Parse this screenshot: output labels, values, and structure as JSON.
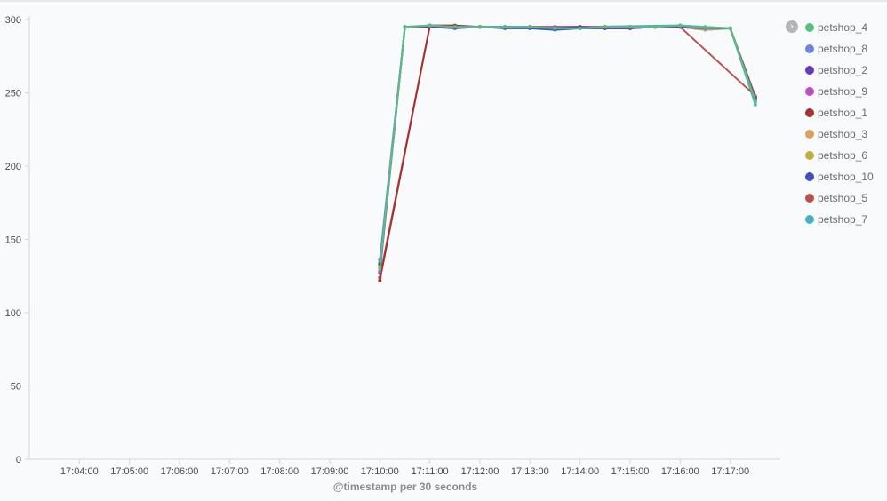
{
  "chart_data": {
    "type": "line",
    "xlabel": "@timestamp per 30 seconds",
    "ylabel": "",
    "ylim": [
      0,
      300
    ],
    "y_ticks": [
      0,
      50,
      100,
      150,
      200,
      250,
      300
    ],
    "x_ticks": [
      "17:04:00",
      "17:05:00",
      "17:06:00",
      "17:07:00",
      "17:08:00",
      "17:09:00",
      "17:10:00",
      "17:11:00",
      "17:12:00",
      "17:13:00",
      "17:14:00",
      "17:15:00",
      "17:16:00",
      "17:17:00"
    ],
    "x_range": [
      "17:03:00",
      "17:18:00"
    ],
    "grid": false,
    "legend_position": "right",
    "legend_toggle_icon": "chevron-right-icon",
    "series": [
      {
        "name": "petshop_4",
        "color": "#57c17b",
        "x": [
          "17:10:00",
          "17:10:30",
          "17:11:00",
          "17:11:30",
          "17:12:00",
          "17:12:30",
          "17:13:00",
          "17:13:30",
          "17:14:00",
          "17:14:30",
          "17:15:00",
          "17:15:30",
          "17:16:00",
          "17:16:30",
          "17:17:00",
          "17:17:30"
        ],
        "values": [
          130,
          295,
          296,
          295,
          295,
          295,
          295,
          294,
          294,
          295,
          295,
          295,
          296,
          295,
          294,
          244
        ]
      },
      {
        "name": "petshop_8",
        "color": "#6f87d8",
        "x": [
          "17:10:00",
          "17:10:30",
          "17:11:00",
          "17:11:30",
          "17:12:00",
          "17:12:30",
          "17:13:00",
          "17:13:30",
          "17:14:00",
          "17:14:30",
          "17:15:00",
          "17:15:30",
          "17:16:00",
          "17:16:30",
          "17:17:00",
          "17:17:30"
        ],
        "values": [
          136,
          295,
          296,
          295,
          295,
          295,
          295,
          294,
          294,
          295,
          295,
          295,
          296,
          294,
          294,
          245
        ]
      },
      {
        "name": "petshop_2",
        "color": "#663db8",
        "x": [
          "17:10:00",
          "17:10:30",
          "17:11:00",
          "17:11:30",
          "17:12:00",
          "17:12:30",
          "17:13:00",
          "17:13:30",
          "17:14:00",
          "17:14:30",
          "17:15:00",
          "17:15:30",
          "17:16:00",
          "17:16:30",
          "17:17:00",
          "17:17:30"
        ],
        "values": [
          133,
          295,
          295,
          295,
          295,
          295,
          295,
          294,
          295,
          294,
          294,
          295,
          295,
          294,
          294,
          246
        ]
      },
      {
        "name": "petshop_9",
        "color": "#bc52bc",
        "x": [
          "17:10:00",
          "17:10:30",
          "17:11:00",
          "17:11:30",
          "17:12:00",
          "17:12:30",
          "17:13:00",
          "17:13:30",
          "17:14:00",
          "17:14:30",
          "17:15:00",
          "17:15:30",
          "17:16:00",
          "17:16:30",
          "17:17:00",
          "17:17:30"
        ],
        "values": [
          128,
          295,
          296,
          295,
          295,
          295,
          295,
          295,
          295,
          295,
          295,
          295,
          295,
          294,
          294,
          246
        ]
      },
      {
        "name": "petshop_1",
        "color": "#9e3533",
        "x": [
          "17:10:00",
          "17:11:00",
          "17:11:30",
          "17:12:00",
          "17:12:30",
          "17:13:00",
          "17:13:30",
          "17:14:00",
          "17:14:30",
          "17:15:00",
          "17:15:30",
          "17:16:00",
          "17:16:30",
          "17:17:00",
          "17:17:30"
        ],
        "values": [
          122,
          296,
          296,
          295,
          295,
          295,
          295,
          295,
          295,
          295,
          295,
          295,
          294,
          294,
          247
        ]
      },
      {
        "name": "petshop_3",
        "color": "#daa05d",
        "x": [
          "17:10:00",
          "17:10:30",
          "17:11:00",
          "17:11:30",
          "17:12:00",
          "17:12:30",
          "17:13:00",
          "17:13:30",
          "17:14:00",
          "17:14:30",
          "17:15:00",
          "17:15:30",
          "17:16:00",
          "17:16:30",
          "17:17:00",
          "17:17:30"
        ],
        "values": [
          132,
          295,
          295,
          295,
          295,
          295,
          295,
          295,
          295,
          295,
          295,
          295,
          295,
          294,
          294,
          248
        ]
      },
      {
        "name": "petshop_6",
        "color": "#bfaf40",
        "x": [
          "17:10:00",
          "17:10:30",
          "17:11:00",
          "17:11:30",
          "17:12:00",
          "17:12:30",
          "17:13:00",
          "17:13:30",
          "17:14:00",
          "17:14:30",
          "17:15:00",
          "17:15:30",
          "17:16:00",
          "17:16:30",
          "17:17:00",
          "17:17:30"
        ],
        "values": [
          131,
          295,
          295,
          295,
          295,
          295,
          295,
          295,
          295,
          295,
          295,
          295,
          295,
          293,
          294,
          246
        ]
      },
      {
        "name": "petshop_10",
        "color": "#4050bf",
        "x": [
          "17:10:00",
          "17:10:30",
          "17:11:00",
          "17:11:30",
          "17:12:00",
          "17:12:30",
          "17:13:00",
          "17:13:30",
          "17:14:00",
          "17:14:30",
          "17:15:00",
          "17:15:30",
          "17:16:00",
          "17:16:30",
          "17:17:00",
          "17:17:30"
        ],
        "values": [
          127,
          295,
          295,
          294,
          295,
          294,
          294,
          293,
          294,
          294,
          294,
          295,
          295,
          293,
          294,
          245
        ]
      },
      {
        "name": "petshop_5",
        "color": "#b8524b",
        "x": [
          "17:10:00",
          "17:11:00",
          "17:11:30",
          "17:12:00",
          "17:12:30",
          "17:13:00",
          "17:13:30",
          "17:14:00",
          "17:14:30",
          "17:15:00",
          "17:15:30",
          "17:16:00",
          "17:17:30"
        ],
        "values": [
          124,
          296,
          295,
          295,
          295,
          295,
          295,
          295,
          295,
          295,
          295,
          295,
          248
        ]
      },
      {
        "name": "petshop_7",
        "color": "#44b5bf",
        "x": [
          "17:10:00",
          "17:10:30",
          "17:11:00",
          "17:11:30",
          "17:12:00",
          "17:12:30",
          "17:13:00",
          "17:13:30",
          "17:14:00",
          "17:16:00",
          "17:17:00",
          "17:17:30"
        ],
        "values": [
          134,
          295,
          295,
          295,
          295,
          295,
          295,
          294,
          295,
          296,
          294,
          242
        ]
      }
    ]
  }
}
